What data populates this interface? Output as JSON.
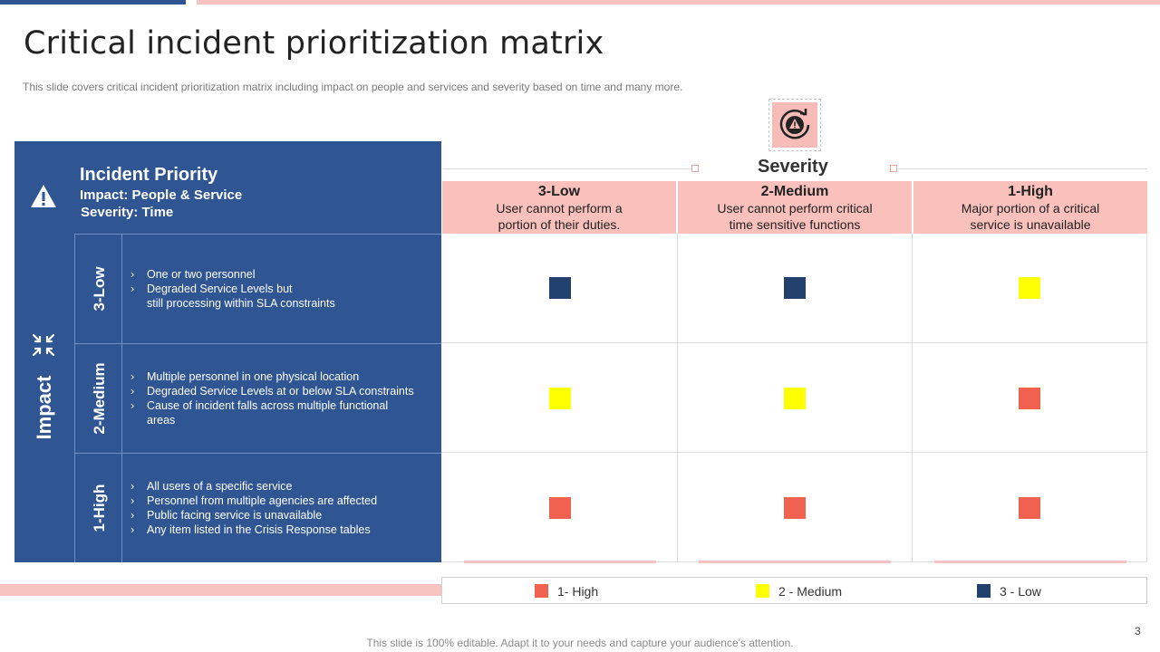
{
  "title": "Critical incident prioritization matrix",
  "subtitle": "This slide covers critical incident prioritization matrix including impact on people and services and severity based on time and many more.",
  "colors": {
    "high": "#f0614f",
    "medium": "#ffff00",
    "low": "#22416e",
    "panel": "#2f5592",
    "pink": "#f9c0bc"
  },
  "header": {
    "title": "Incident Priority",
    "impact_line": "Impact: People & Service",
    "severity_line": "Severity: Time",
    "icon": "warning-icon"
  },
  "impact": {
    "label": "Impact",
    "icon": "compress-arrows-icon",
    "rows": [
      {
        "level": "3-Low",
        "bullets": [
          "One or two personnel",
          "Degraded  Service Levels but",
          "still processing within SLA constraints"
        ]
      },
      {
        "level": "2-Medium",
        "bullets": [
          "Multiple personnel  in one physical location",
          "Degraded  Service Levels at or below SLA constraints",
          "Cause of incident falls across multiple functional",
          "areas"
        ]
      },
      {
        "level": "1-High",
        "bullets": [
          "All users of a specific service",
          "Personnel from multiple agencies are affected",
          "Public facing service  is unavailable",
          "Any item listed in the Crisis Response tables"
        ]
      }
    ]
  },
  "severity": {
    "label": "Severity",
    "icon": "clock-warning-icon",
    "columns": [
      {
        "level": "3-Low",
        "desc1": "User cannot perform a",
        "desc2": "portion of their duties."
      },
      {
        "level": "2-Medium",
        "desc1": "User cannot perform critical",
        "desc2": "time sensitive functions"
      },
      {
        "level": "1-High",
        "desc1": "Major portion of a critical",
        "desc2": "service is unavailable"
      }
    ]
  },
  "matrix": [
    [
      "low",
      "low",
      "medium"
    ],
    [
      "medium",
      "medium",
      "high"
    ],
    [
      "high",
      "high",
      "high"
    ]
  ],
  "legend": [
    {
      "key": "high",
      "label": "1-  High"
    },
    {
      "key": "medium",
      "label": "2 - Medium"
    },
    {
      "key": "low",
      "label": "3 - Low"
    }
  ],
  "page_number": "3",
  "footer": "This slide is 100% editable. Adapt it to your needs and capture your audience's attention."
}
